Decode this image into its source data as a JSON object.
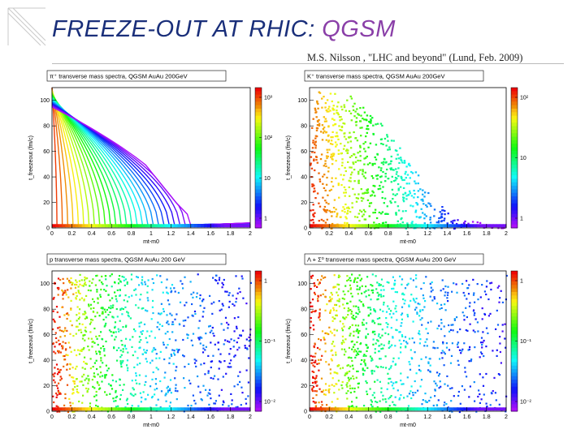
{
  "slide": {
    "title_part1": "FREEZE-OUT  AT RHIC:",
    "title_part2": "QGSM",
    "subtitle": "M.S. Nilsson , \"LHC and beyond\" (Lund, Feb. 2009)",
    "title_color": "#1a2f7a",
    "accent_color": "#8a3fa8"
  },
  "chart_data": [
    {
      "type": "heatmap",
      "title": "π⁺ transverse mass spectra, QGSM AuAu 200GeV",
      "xlabel": "mt-m0",
      "ylabel": "t_freezeout (fm/c)",
      "xlim": [
        0,
        2
      ],
      "ylim": [
        0,
        110
      ],
      "xticks": [
        "0",
        "0.2",
        "0.4",
        "0.6",
        "0.8",
        "1",
        "1.2",
        "1.4",
        "1.6",
        "1.8",
        "2"
      ],
      "yticks": [
        "0",
        "20",
        "40",
        "60",
        "80",
        "100"
      ],
      "colorbar_ticks": [
        "1",
        "10",
        "10²",
        "10³"
      ],
      "colorbar_scale": "log",
      "cutoff": [
        [
          0,
          110
        ],
        [
          0.4,
          95
        ],
        [
          0.7,
          72
        ],
        [
          1.0,
          42
        ],
        [
          1.25,
          18
        ],
        [
          1.4,
          6
        ],
        [
          2,
          2
        ]
      ],
      "fill_style": "contour_lines"
    },
    {
      "type": "heatmap",
      "title": "K⁺ transverse mass spectra, QGSM AuAu 200GeV",
      "xlabel": "mt-m0",
      "ylabel": "t_freezeout (fm/c)",
      "xlim": [
        0,
        2
      ],
      "ylim": [
        0,
        110
      ],
      "xticks": [
        "0",
        "0.2",
        "0.4",
        "0.6",
        "0.8",
        "1",
        "1.2",
        "1.4",
        "1.6",
        "1.8",
        "2"
      ],
      "yticks": [
        "0",
        "20",
        "40",
        "60",
        "80",
        "100"
      ],
      "colorbar_ticks": [
        "1",
        "10",
        "10²"
      ],
      "colorbar_scale": "log",
      "cutoff": [
        [
          0,
          110
        ],
        [
          0.4,
          105
        ],
        [
          0.7,
          85
        ],
        [
          1.0,
          55
        ],
        [
          1.25,
          25
        ],
        [
          1.45,
          8
        ],
        [
          2,
          2
        ]
      ],
      "fill_style": "dense"
    },
    {
      "type": "heatmap",
      "title": "p transverse mass spectra, QGSM AuAu 200 GeV",
      "xlabel": "mt-m0",
      "ylabel": "t_freezeout (fm/c)",
      "xlim": [
        0,
        2
      ],
      "ylim": [
        0,
        110
      ],
      "xticks": [
        "0",
        "0.2",
        "0.4",
        "0.6",
        "0.8",
        "1",
        "1.2",
        "1.4",
        "1.6",
        "1.8",
        "2"
      ],
      "yticks": [
        "0",
        "20",
        "40",
        "60",
        "80",
        "100"
      ],
      "colorbar_ticks": [
        "10⁻²",
        "10⁻¹",
        "1"
      ],
      "colorbar_scale": "log",
      "cutoff": [
        [
          0,
          110
        ],
        [
          2,
          110
        ]
      ],
      "fill_style": "scatter"
    },
    {
      "type": "heatmap",
      "title": "Λ + Σ⁰ transverse mass spectra, QGSM AuAu 200 GeV",
      "xlabel": "mt-m0",
      "ylabel": "t_freezeout (fm/c)",
      "xlim": [
        0,
        2
      ],
      "ylim": [
        0,
        110
      ],
      "xticks": [
        "0",
        "0.2",
        "0.4",
        "0.6",
        "0.8",
        "1",
        "1.2",
        "1.4",
        "1.6",
        "1.8",
        "2"
      ],
      "yticks": [
        "0",
        "20",
        "40",
        "60",
        "80",
        "100"
      ],
      "colorbar_ticks": [
        "10⁻²",
        "10⁻¹",
        "1"
      ],
      "colorbar_scale": "log",
      "cutoff": [
        [
          0,
          110
        ],
        [
          2,
          110
        ]
      ],
      "fill_style": "scatter"
    }
  ]
}
